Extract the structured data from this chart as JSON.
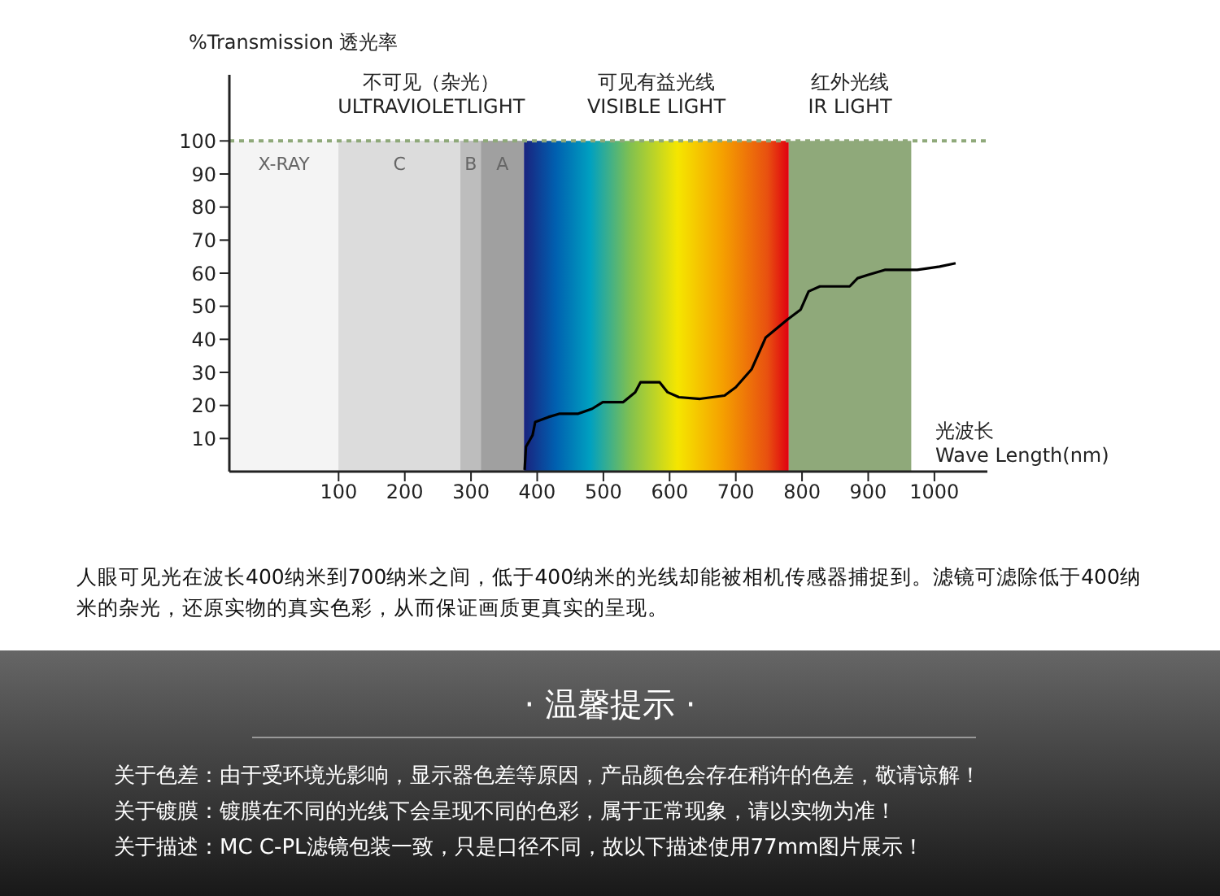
{
  "chart_data": {
    "type": "line",
    "ylabel": "%Transmission 透光率",
    "xlabel": "光波长\nWave Length(nm)",
    "x": [
      381,
      383,
      393,
      397,
      417,
      434,
      462,
      483,
      499,
      530,
      548,
      556,
      585,
      597,
      614,
      646,
      683,
      700,
      724,
      745,
      778,
      798,
      810,
      827,
      872,
      884,
      900,
      925,
      974,
      1008,
      1032
    ],
    "series": [
      {
        "color": "#000000",
        "values": [
          0.5,
          7.5,
          11,
          15,
          16.5,
          17.5,
          17.5,
          19,
          21,
          21,
          24,
          27,
          27,
          24,
          22.5,
          22,
          23,
          25.5,
          31,
          40.5,
          46,
          49,
          54.5,
          56,
          56,
          58.5,
          59.5,
          61,
          61,
          62,
          63
        ]
      }
    ],
    "xlim": [
      -65,
      1080
    ],
    "ylim": [
      0,
      120
    ],
    "xticks": [
      100,
      200,
      300,
      400,
      500,
      600,
      700,
      800,
      900,
      1000
    ],
    "yticks": [
      10,
      20,
      30,
      40,
      50,
      60,
      70,
      80,
      90,
      100
    ],
    "marker": "none",
    "line_style": "solid",
    "ref_lines": [
      {
        "axis": "y",
        "value": 100,
        "color": "#8fa97a",
        "line_style": "dotted"
      }
    ],
    "bands": [
      {
        "axis": "x",
        "from": -65,
        "to": 100,
        "label": "X-RAY",
        "color": "#f4f4f4"
      },
      {
        "axis": "x",
        "from": 100,
        "to": 380,
        "label": "不可见（杂光）\nULTRAVIOLETLIGHT",
        "color": "#dcdcdc"
      },
      {
        "axis": "x",
        "from": 100,
        "to": 284,
        "label": "C",
        "color": "#dcdcdc"
      },
      {
        "axis": "x",
        "from": 284,
        "to": 315,
        "label": "B",
        "color": "#bdbdbd"
      },
      {
        "axis": "x",
        "from": 315,
        "to": 380,
        "label": "A",
        "color": "#a0a0a0"
      },
      {
        "axis": "x",
        "from": 380,
        "to": 780,
        "label": "可见有益光线\nVISIBLE LIGHT"
      },
      {
        "axis": "x",
        "from": 780,
        "to": 965,
        "label": "红外光线\nIR LIGHT",
        "color": "#8fa97a"
      }
    ],
    "annotations": [
      "人眼可见光在波长400纳米到700纳米之间，低于400纳米的光线却能被相机传感器捕捉到。滤镜可滤除低于400纳米的杂光，还原实物的真实色彩，从而保证画质更真实的呈现。",
      "· 温馨提示 ·",
      "关于色差：由于受环境光影响，显示器色差等原因，产品颜色会存在稍许的色差，敬请谅解！",
      "关于镀膜：镀膜在不同的光线下会呈现不同的色彩，属于正常现象，请以实物为准！",
      "关于描述：MC C-PL滤镜包装一致，只是口径不同，故以下描述使用77mm图片展示！"
    ]
  }
}
